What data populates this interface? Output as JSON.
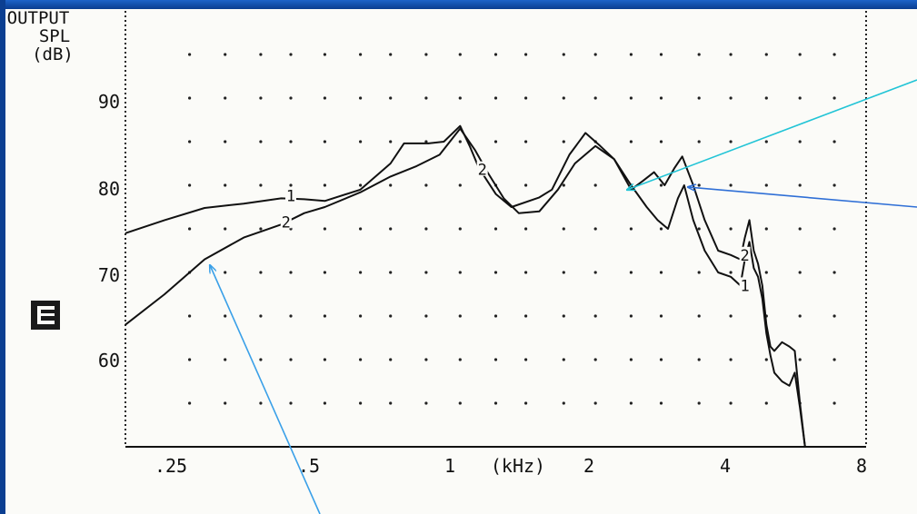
{
  "window": {
    "frame_color": "#0a3d8f",
    "paper_color": "#fbfbf8",
    "arrow_colors": [
      "#21c4d6",
      "#2f6fd6",
      "#3aa0e8"
    ]
  },
  "chart_data": {
    "type": "line",
    "title_lines": [
      "OUTPUT",
      "SPL",
      "(dB)"
    ],
    "xlabel": "(kHz)",
    "x_scale": "log",
    "xlim": [
      0.18,
      8
    ],
    "ylim": [
      50,
      100
    ],
    "grid": "dotted",
    "x_tick_labels": [
      {
        "value": 0.25,
        "label": ".25"
      },
      {
        "value": 0.5,
        "label": ".5"
      },
      {
        "value": 1,
        "label": "1"
      },
      {
        "value": 2,
        "label": "2"
      },
      {
        "value": 4,
        "label": "4"
      },
      {
        "value": 8,
        "label": "8"
      }
    ],
    "y_tick_labels": [
      {
        "value": 90,
        "label": "90"
      },
      {
        "value": 80,
        "label": "80"
      },
      {
        "value": 70,
        "label": "70"
      },
      {
        "value": 60,
        "label": "60"
      }
    ],
    "marker_icon": "b-badge-icon",
    "series": [
      {
        "name": "1",
        "label_positions": [
          {
            "x": 0.42,
            "y": 78.8
          },
          {
            "x": 4.3,
            "y": 68.5
          }
        ],
        "points": [
          [
            0.18,
            74.5
          ],
          [
            0.22,
            76
          ],
          [
            0.27,
            77.4
          ],
          [
            0.33,
            77.9
          ],
          [
            0.4,
            78.5
          ],
          [
            0.45,
            78.4
          ],
          [
            0.5,
            78.2
          ],
          [
            0.6,
            79.5
          ],
          [
            0.7,
            82.5
          ],
          [
            0.75,
            84.8
          ],
          [
            0.85,
            84.8
          ],
          [
            0.92,
            85
          ],
          [
            1.0,
            86.8
          ],
          [
            1.05,
            84.5
          ],
          [
            1.1,
            82
          ],
          [
            1.2,
            79
          ],
          [
            1.3,
            77.5
          ],
          [
            1.5,
            78.6
          ],
          [
            1.6,
            79.5
          ],
          [
            1.75,
            83.5
          ],
          [
            1.9,
            86
          ],
          [
            2.05,
            84.5
          ],
          [
            2.2,
            83
          ],
          [
            2.4,
            80
          ],
          [
            2.6,
            77.5
          ],
          [
            2.75,
            76
          ],
          [
            2.9,
            75
          ],
          [
            3.05,
            78.5
          ],
          [
            3.15,
            80
          ],
          [
            3.3,
            76
          ],
          [
            3.5,
            72.5
          ],
          [
            3.75,
            70
          ],
          [
            4.0,
            69.5
          ],
          [
            4.2,
            68.5
          ],
          [
            4.3,
            71.5
          ],
          [
            4.4,
            73.5
          ],
          [
            4.5,
            70.5
          ],
          [
            4.6,
            69.5
          ],
          [
            4.7,
            67
          ],
          [
            4.8,
            63
          ],
          [
            4.9,
            60.5
          ],
          [
            5.0,
            58.5
          ],
          [
            5.2,
            57.5
          ],
          [
            5.4,
            57
          ],
          [
            5.55,
            58.5
          ],
          [
            5.7,
            54.5
          ],
          [
            5.85,
            50
          ]
        ]
      },
      {
        "name": "2",
        "label_positions": [
          {
            "x": 0.41,
            "y": 75.8
          },
          {
            "x": 1.12,
            "y": 81.8
          },
          {
            "x": 4.3,
            "y": 72
          }
        ],
        "points": [
          [
            0.18,
            64
          ],
          [
            0.22,
            67.5
          ],
          [
            0.27,
            71.5
          ],
          [
            0.33,
            74
          ],
          [
            0.4,
            75.5
          ],
          [
            0.45,
            76.8
          ],
          [
            0.5,
            77.5
          ],
          [
            0.6,
            79.2
          ],
          [
            0.7,
            81
          ],
          [
            0.8,
            82.2
          ],
          [
            0.9,
            83.5
          ],
          [
            1.0,
            86.5
          ],
          [
            1.08,
            84
          ],
          [
            1.15,
            81.5
          ],
          [
            1.25,
            78.5
          ],
          [
            1.35,
            76.8
          ],
          [
            1.5,
            77
          ],
          [
            1.65,
            79.5
          ],
          [
            1.8,
            82.5
          ],
          [
            2.0,
            84.5
          ],
          [
            2.2,
            83
          ],
          [
            2.4,
            79.5
          ],
          [
            2.55,
            80.5
          ],
          [
            2.7,
            81.5
          ],
          [
            2.85,
            80
          ],
          [
            3.0,
            82
          ],
          [
            3.12,
            83.3
          ],
          [
            3.3,
            80
          ],
          [
            3.5,
            76
          ],
          [
            3.75,
            72.5
          ],
          [
            4.0,
            72
          ],
          [
            4.2,
            71.5
          ],
          [
            4.3,
            74
          ],
          [
            4.4,
            76
          ],
          [
            4.5,
            72.5
          ],
          [
            4.6,
            71
          ],
          [
            4.7,
            68.5
          ],
          [
            4.8,
            64
          ],
          [
            4.9,
            61.5
          ],
          [
            5.0,
            61
          ],
          [
            5.2,
            62
          ],
          [
            5.4,
            61.5
          ],
          [
            5.55,
            61
          ],
          [
            5.7,
            55
          ],
          [
            5.85,
            50
          ]
        ]
      }
    ]
  }
}
